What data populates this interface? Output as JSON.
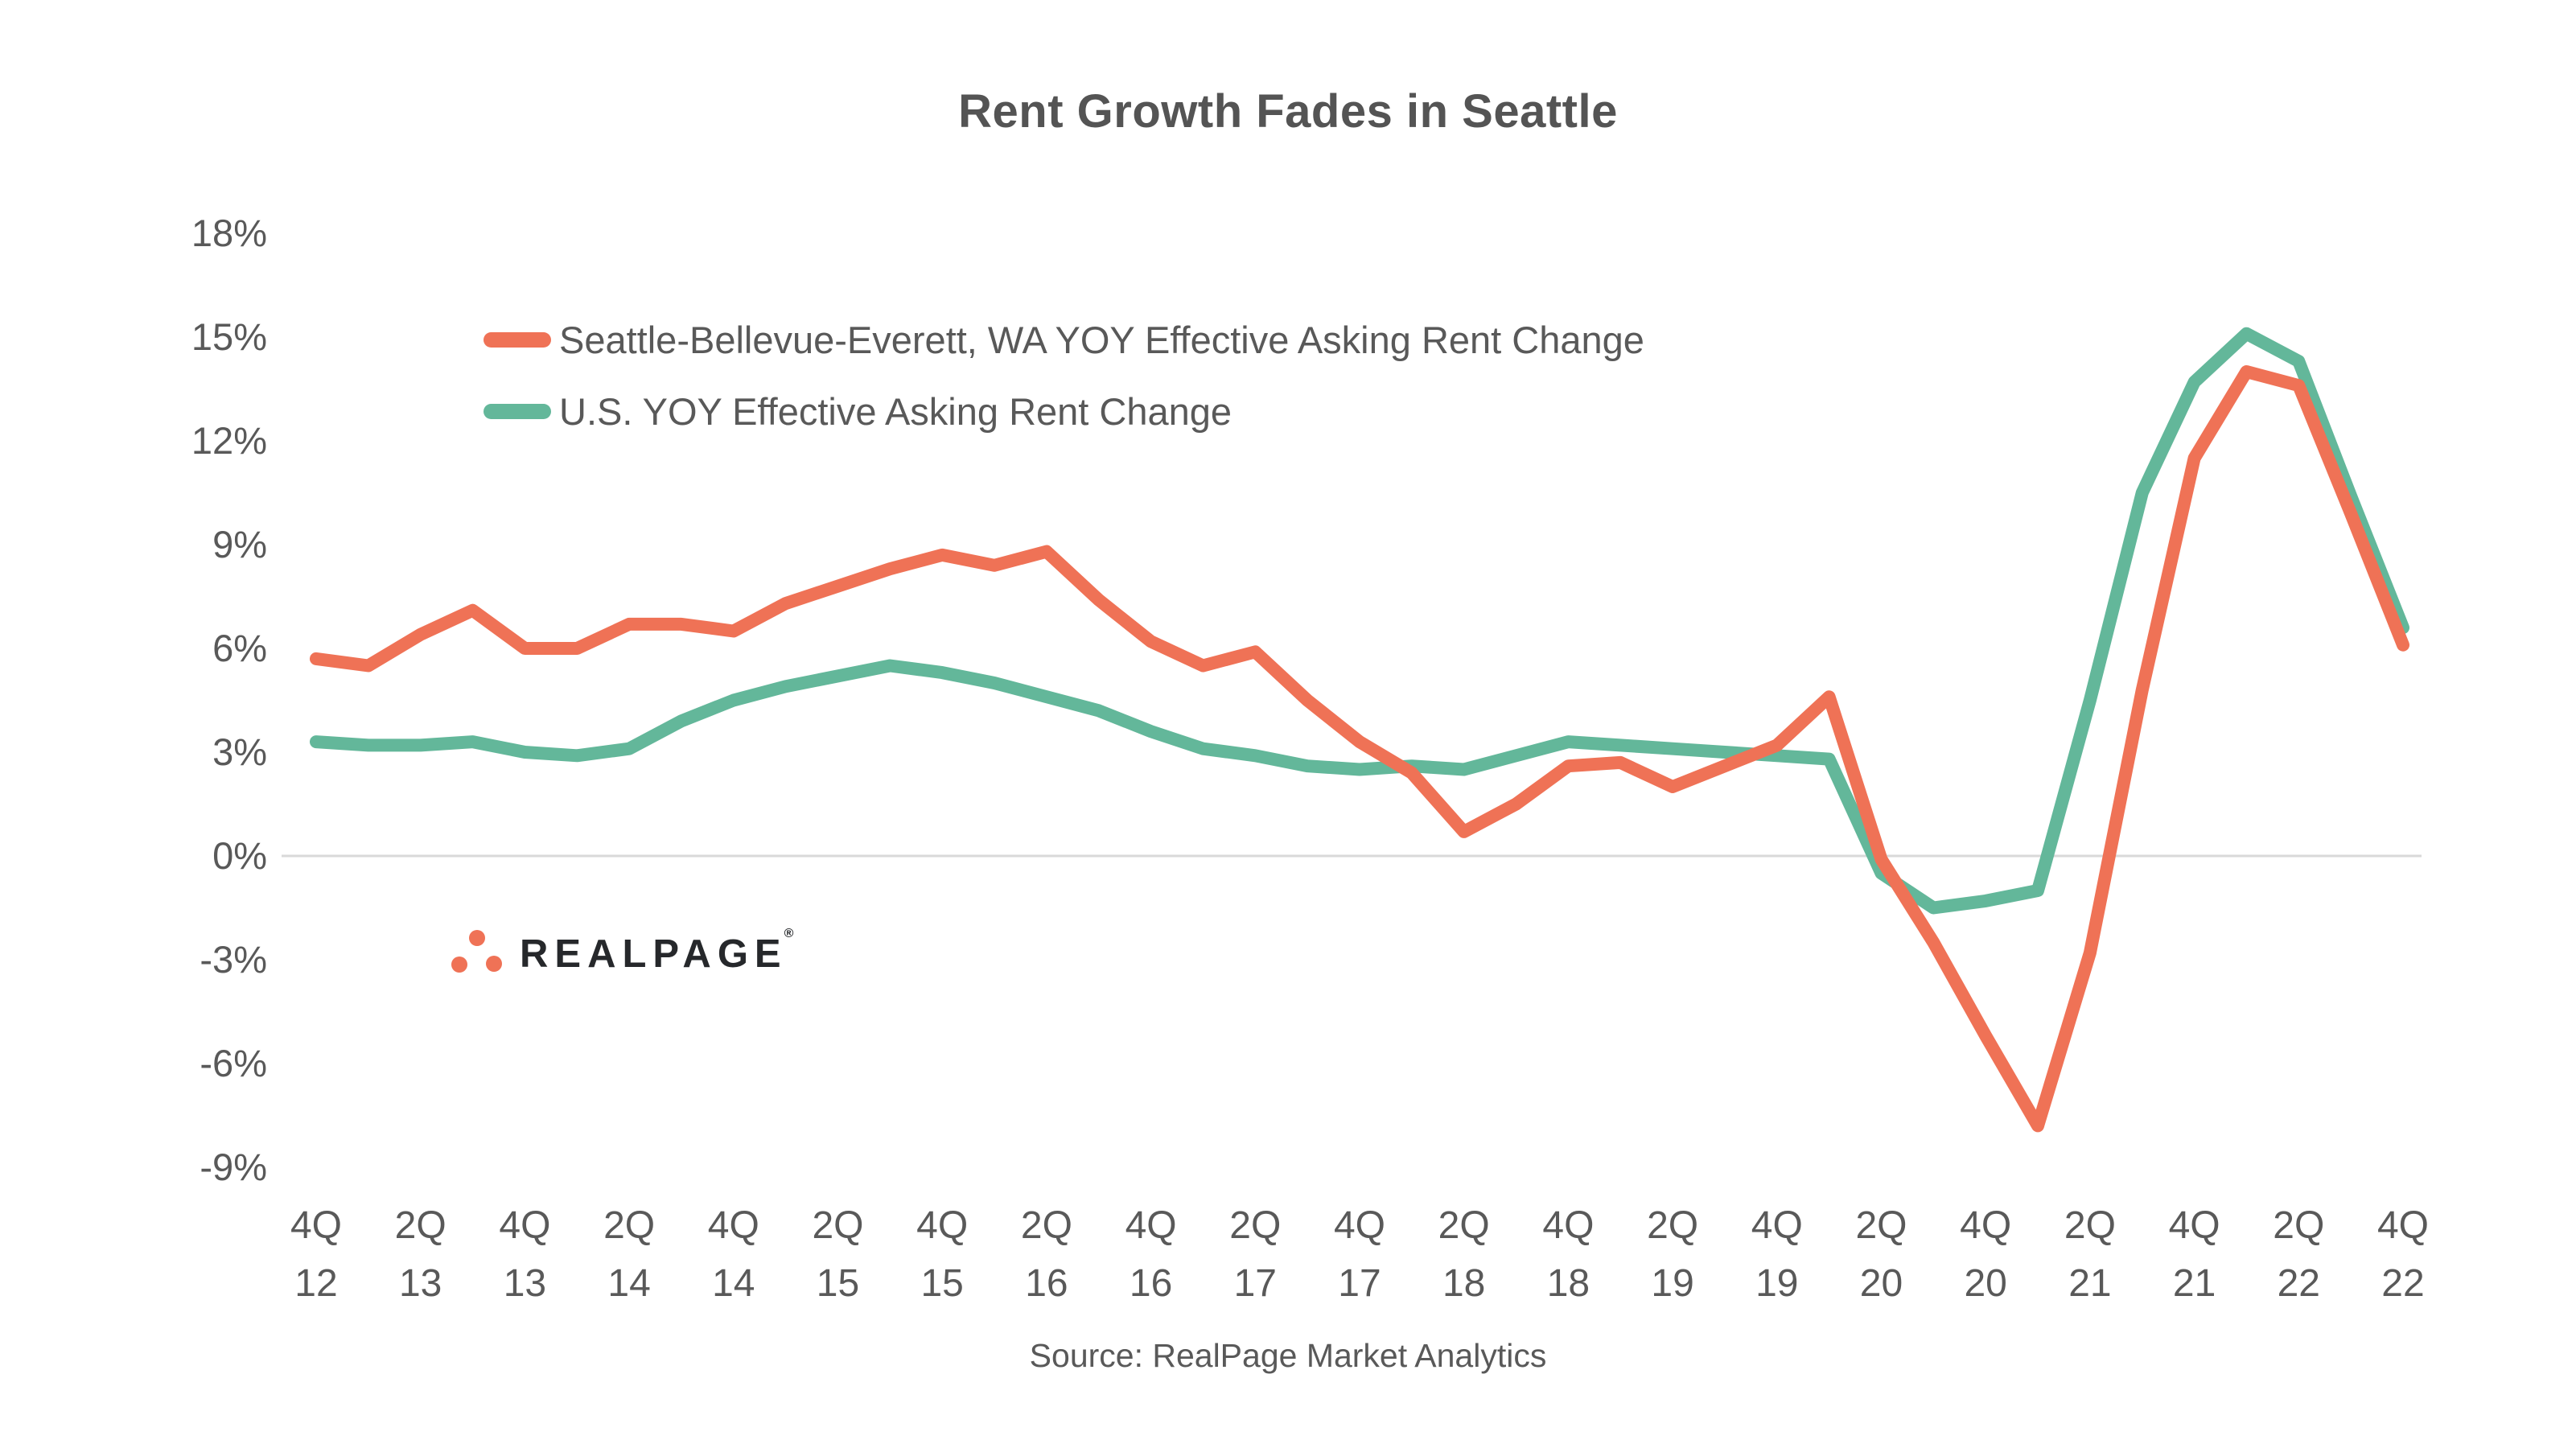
{
  "title": "Rent Growth Fades in Seattle",
  "source": "Source: RealPage Market Analytics",
  "logo": {
    "text": "REALPAGE",
    "registered": "®"
  },
  "colors": {
    "seattle_line": "#EF7256",
    "us_line": "#63B79A",
    "title_text": "#545454",
    "axis_text": "#595959",
    "zero_gridline": "#D9D9D9",
    "logo_text": "#26282B",
    "logo_dots": "#EF7256",
    "background": "#FFFFFF"
  },
  "legend": {
    "items": [
      {
        "series": "seattle",
        "label": "Seattle-Bellevue-Everett, WA YOY Effective Asking Rent Change"
      },
      {
        "series": "us",
        "label": "U.S. YOY Effective Asking Rent Change"
      }
    ]
  },
  "chart_data": {
    "type": "line",
    "title": "Rent Growth Fades in Seattle",
    "xlabel": "",
    "ylabel": "",
    "ylim": [
      -9,
      18
    ],
    "ytick_step": 3,
    "grid": "zero-line-only",
    "legend_position": "top-left",
    "y_tick_labels": [
      "18%",
      "15%",
      "12%",
      "9%",
      "6%",
      "3%",
      "0%",
      "-3%",
      "-6%",
      "-9%"
    ],
    "x_tick_labels": [
      [
        "4Q",
        "12"
      ],
      [
        "2Q",
        "13"
      ],
      [
        "4Q",
        "13"
      ],
      [
        "2Q",
        "14"
      ],
      [
        "4Q",
        "14"
      ],
      [
        "2Q",
        "15"
      ],
      [
        "4Q",
        "15"
      ],
      [
        "2Q",
        "16"
      ],
      [
        "4Q",
        "16"
      ],
      [
        "2Q",
        "17"
      ],
      [
        "4Q",
        "17"
      ],
      [
        "2Q",
        "18"
      ],
      [
        "4Q",
        "18"
      ],
      [
        "2Q",
        "19"
      ],
      [
        "4Q",
        "19"
      ],
      [
        "2Q",
        "20"
      ],
      [
        "4Q",
        "20"
      ],
      [
        "2Q",
        "21"
      ],
      [
        "4Q",
        "21"
      ],
      [
        "2Q",
        "22"
      ],
      [
        "4Q",
        "22"
      ]
    ],
    "x": [
      "4Q12",
      "1Q13",
      "2Q13",
      "3Q13",
      "4Q13",
      "1Q14",
      "2Q14",
      "3Q14",
      "4Q14",
      "1Q15",
      "2Q15",
      "3Q15",
      "4Q15",
      "1Q16",
      "2Q16",
      "3Q16",
      "4Q16",
      "1Q17",
      "2Q17",
      "3Q17",
      "4Q17",
      "1Q18",
      "2Q18",
      "3Q18",
      "4Q18",
      "1Q19",
      "2Q19",
      "3Q19",
      "4Q19",
      "1Q20",
      "2Q20",
      "3Q20",
      "4Q20",
      "1Q21",
      "2Q21",
      "3Q21",
      "4Q21",
      "1Q22",
      "2Q22",
      "3Q22",
      "4Q22"
    ],
    "series": [
      {
        "name": "Seattle-Bellevue-Everett, WA YOY Effective Asking Rent Change",
        "color_key": "seattle_line",
        "values": [
          5.7,
          5.5,
          6.4,
          7.1,
          6.0,
          6.0,
          6.7,
          6.7,
          6.5,
          7.3,
          7.8,
          8.3,
          8.7,
          8.4,
          8.8,
          7.4,
          6.2,
          5.5,
          5.9,
          4.5,
          3.3,
          2.4,
          0.7,
          1.5,
          2.6,
          2.7,
          2.0,
          2.6,
          3.2,
          4.6,
          -0.1,
          -2.5,
          -5.2,
          -7.8,
          -2.8,
          4.8,
          11.5,
          14.0,
          13.6,
          9.9,
          6.1
        ]
      },
      {
        "name": "U.S. YOY Effective Asking Rent Change",
        "color_key": "us_line",
        "values": [
          3.3,
          3.2,
          3.2,
          3.3,
          3.0,
          2.9,
          3.1,
          3.9,
          4.5,
          4.9,
          5.2,
          5.5,
          5.3,
          5.0,
          4.6,
          4.2,
          3.6,
          3.1,
          2.9,
          2.6,
          2.5,
          2.6,
          2.5,
          2.9,
          3.3,
          3.2,
          3.1,
          3.0,
          2.9,
          2.8,
          -0.5,
          -1.5,
          -1.3,
          -1.0,
          4.5,
          10.5,
          13.7,
          15.1,
          14.3,
          10.4,
          6.6
        ]
      }
    ]
  }
}
